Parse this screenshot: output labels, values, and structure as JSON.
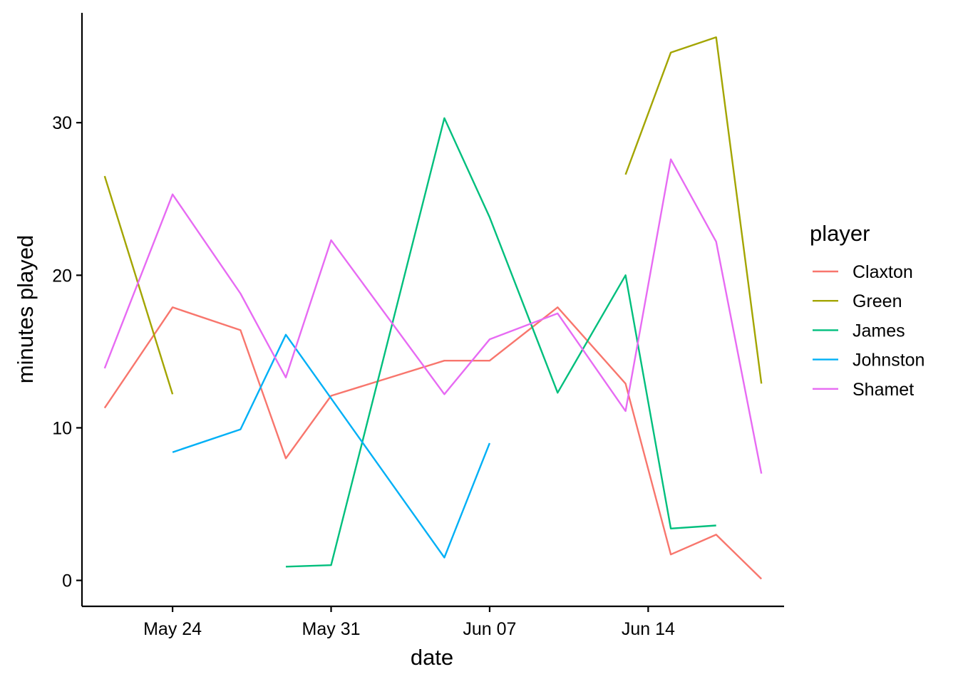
{
  "chart_data": {
    "type": "line",
    "title": "",
    "xlabel": "date",
    "ylabel": "minutes played",
    "xlim": [
      "2023-05-20",
      "2023-06-20"
    ],
    "ylim": [
      -1.7,
      37.2
    ],
    "x_ticks": [
      {
        "date": "2023-05-24",
        "label": "May 24"
      },
      {
        "date": "2023-05-31",
        "label": "May 31"
      },
      {
        "date": "2023-06-07",
        "label": "Jun 07"
      },
      {
        "date": "2023-06-14",
        "label": "Jun 14"
      }
    ],
    "y_ticks": [
      0,
      10,
      20,
      30
    ],
    "grid": false,
    "legend": {
      "title": "player",
      "position": "right"
    },
    "series": [
      {
        "name": "Claxton",
        "color": "#F8766D",
        "points": [
          {
            "date": "2023-05-21",
            "y": 11.3
          },
          {
            "date": "2023-05-24",
            "y": 17.9
          },
          {
            "date": "2023-05-27",
            "y": 16.4
          },
          {
            "date": "2023-05-29",
            "y": 8.0
          },
          {
            "date": "2023-05-31",
            "y": 12.1
          },
          {
            "date": "2023-06-05",
            "y": 14.4
          },
          {
            "date": "2023-06-07",
            "y": 14.4
          },
          {
            "date": "2023-06-10",
            "y": 17.9
          },
          {
            "date": "2023-06-13",
            "y": 12.9
          },
          {
            "date": "2023-06-15",
            "y": 1.7
          },
          {
            "date": "2023-06-17",
            "y": 3.0
          },
          {
            "date": "2023-06-19",
            "y": 0.1
          }
        ]
      },
      {
        "name": "Green",
        "color": "#A3A500",
        "points": [
          {
            "date": "2023-05-21",
            "y": 26.5
          },
          {
            "date": "2023-05-24",
            "y": 12.2
          },
          {
            "date": "2023-06-13",
            "y": 26.6
          },
          {
            "date": "2023-06-15",
            "y": 34.6
          },
          {
            "date": "2023-06-17",
            "y": 35.6
          },
          {
            "date": "2023-06-19",
            "y": 12.9
          }
        ]
      },
      {
        "name": "James",
        "color": "#00BF7D",
        "points": [
          {
            "date": "2023-05-29",
            "y": 0.9
          },
          {
            "date": "2023-05-31",
            "y": 1.0
          },
          {
            "date": "2023-06-05",
            "y": 30.3
          },
          {
            "date": "2023-06-07",
            "y": 23.8
          },
          {
            "date": "2023-06-10",
            "y": 12.3
          },
          {
            "date": "2023-06-13",
            "y": 20.0
          },
          {
            "date": "2023-06-15",
            "y": 3.4
          },
          {
            "date": "2023-06-17",
            "y": 3.6
          }
        ]
      },
      {
        "name": "Johnston",
        "color": "#00B0F6",
        "points": [
          {
            "date": "2023-05-24",
            "y": 8.4
          },
          {
            "date": "2023-05-27",
            "y": 9.9
          },
          {
            "date": "2023-05-29",
            "y": 16.1
          },
          {
            "date": "2023-06-05",
            "y": 1.5
          },
          {
            "date": "2023-06-07",
            "y": 9.0
          }
        ]
      },
      {
        "name": "Shamet",
        "color": "#E76BF3",
        "points": [
          {
            "date": "2023-05-21",
            "y": 13.9
          },
          {
            "date": "2023-05-24",
            "y": 25.3
          },
          {
            "date": "2023-05-27",
            "y": 18.8
          },
          {
            "date": "2023-05-29",
            "y": 13.3
          },
          {
            "date": "2023-05-31",
            "y": 22.3
          },
          {
            "date": "2023-06-05",
            "y": 12.2
          },
          {
            "date": "2023-06-07",
            "y": 15.8
          },
          {
            "date": "2023-06-10",
            "y": 17.5
          },
          {
            "date": "2023-06-13",
            "y": 11.1
          },
          {
            "date": "2023-06-15",
            "y": 27.6
          },
          {
            "date": "2023-06-17",
            "y": 22.2
          },
          {
            "date": "2023-06-19",
            "y": 7.0
          }
        ]
      }
    ]
  }
}
